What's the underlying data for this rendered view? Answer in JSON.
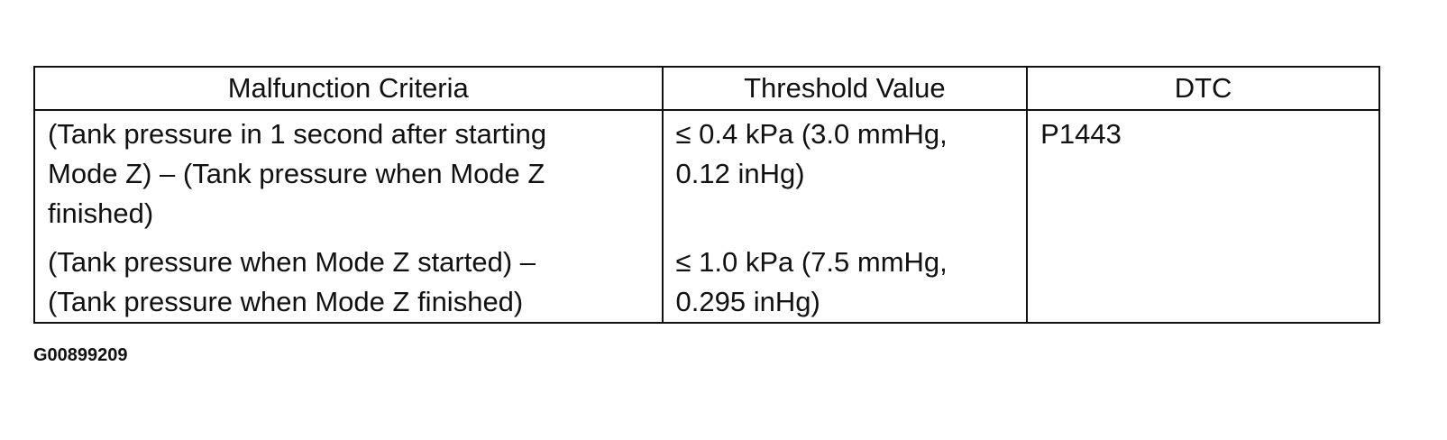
{
  "table": {
    "header": [
      "Malfunction Criteria",
      "Threshold Value",
      "DTC"
    ],
    "rows": [
      [
        [
          "(Tank pressure in 1 second after starting",
          "Mode Z) – (Tank pressure when Mode Z",
          "finished)"
        ],
        [
          "≤ 0.4 kPa (3.0 mmHg,",
          "0.12 inHg)"
        ],
        [
          "P1443"
        ]
      ],
      [
        [
          "(Tank pressure when Mode Z started) –",
          "(Tank pressure when Mode Z finished)"
        ],
        [
          "≤ 1.0 kPa (7.5 mmHg,",
          "0.295 inHg)"
        ]
      ]
    ]
  },
  "caption": "G00899209"
}
